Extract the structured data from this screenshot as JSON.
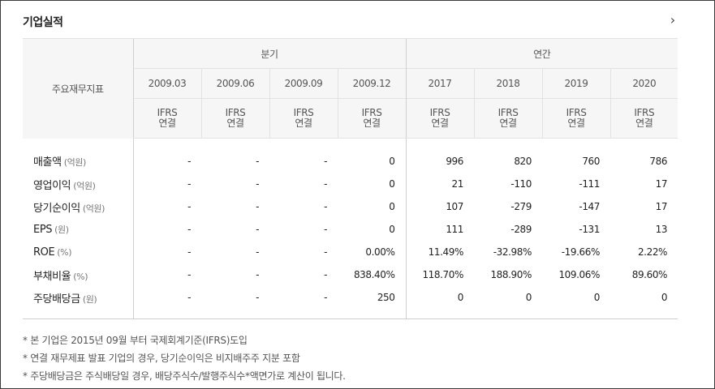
{
  "section": {
    "title": "기업실적",
    "more_icon": "chevron-right-icon"
  },
  "table": {
    "row_header": "주요재무지표",
    "groups": {
      "quarterly": "분기",
      "annual": "연간"
    },
    "periods": [
      "2009.03",
      "2009.06",
      "2009.09",
      "2009.12",
      "2017",
      "2018",
      "2019",
      "2020"
    ],
    "standard": [
      "IFRS",
      "IFRS",
      "IFRS",
      "IFRS",
      "IFRS",
      "IFRS",
      "IFRS",
      "IFRS"
    ],
    "basis": [
      "연결",
      "연결",
      "연결",
      "연결",
      "연결",
      "연결",
      "연결",
      "연결"
    ],
    "rows": [
      {
        "name": "매출액",
        "unit": "(억원)",
        "values": [
          "-",
          "-",
          "-",
          "0",
          "996",
          "820",
          "760",
          "786"
        ]
      },
      {
        "name": "영업이익",
        "unit": "(억원)",
        "values": [
          "-",
          "-",
          "-",
          "0",
          "21",
          "-110",
          "-111",
          "17"
        ]
      },
      {
        "name": "당기순이익",
        "unit": "(억원)",
        "values": [
          "-",
          "-",
          "-",
          "0",
          "107",
          "-279",
          "-147",
          "17"
        ]
      },
      {
        "name": "EPS",
        "unit": "(원)",
        "values": [
          "-",
          "-",
          "-",
          "0",
          "111",
          "-289",
          "-131",
          "13"
        ]
      },
      {
        "name": "ROE",
        "unit": "(%)",
        "values": [
          "-",
          "-",
          "-",
          "0.00%",
          "11.49%",
          "-32.98%",
          "-19.66%",
          "2.22%"
        ]
      },
      {
        "name": "부채비율",
        "unit": "(%)",
        "values": [
          "-",
          "-",
          "-",
          "838.40%",
          "118.70%",
          "188.90%",
          "109.06%",
          "89.60%"
        ]
      },
      {
        "name": "주당배당금",
        "unit": "(원)",
        "values": [
          "-",
          "-",
          "-",
          "250",
          "0",
          "0",
          "0",
          "0"
        ]
      }
    ]
  },
  "notes": [
    "* 본 기업은 2015년 09월 부터 국제회계기준(IFRS)도입",
    "* 연결 재무제표 발표 기업의 경우, 당기순이익은 비지배주주 지분 포함",
    "* 주당배당금은 주식배당일 경우, 배당주식수/발행주식수*액면가로 계산이 됩니다."
  ]
}
